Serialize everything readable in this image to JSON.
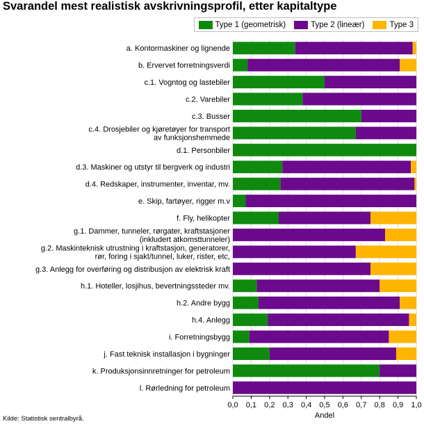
{
  "title": "Svarandel mest realistisk avskrivningsprofil, etter kapitaltype",
  "source": "Kilde: Statistisk sentralbyrå.",
  "colors": {
    "type1": "#0f8a0f",
    "type2": "#6b0a8c",
    "type3": "#ffb400",
    "grid": "#d9d9d9"
  },
  "chart_data": {
    "type": "bar",
    "orientation": "horizontal",
    "stacked": true,
    "title": "Svarandel mest realistisk avskrivningsprofil, etter kapitaltype",
    "xlabel": "Andel",
    "ylabel": "",
    "xlim": [
      0,
      1
    ],
    "xticks": [
      "0,0",
      "0,1",
      "0,2",
      "0,3",
      "0,4",
      "0,5",
      "0,6",
      "0,7",
      "0,8",
      "0,9",
      "1,0"
    ],
    "legend": [
      "Type 1 (geometrisk)",
      "Type 2 (lineær)",
      "Type 3"
    ],
    "legend_position": "top-right",
    "categories": [
      [
        "a. Kontormaskiner og lignende"
      ],
      [
        "b. Ervervet forretningsverdi"
      ],
      [
        "c.1. Vogntog og lastebiler"
      ],
      [
        "c.2. Varebiler"
      ],
      [
        "c.3. Busser"
      ],
      [
        "c.4. Drosjebiler og kjøretøyer for transport",
        "av funksjonshemmede"
      ],
      [
        "d.1. Personbiler"
      ],
      [
        "d.3. Maskiner og utstyr til bergverk og industri"
      ],
      [
        "d.4. Redskaper, instrumenter, inventar, mv."
      ],
      [
        "e. Skip, fartøyer, rigger m.v"
      ],
      [
        "f. Fly, helikopter"
      ],
      [
        "g.1. Dammer, tunneler, rørgater, kraftstasjoner",
        "(inkludert atkomsttunneler)"
      ],
      [
        "g.2. Maskinteknisk utrustning i kraftstasjon, generatorer,",
        "rør, foring i sjakt/tunnel, luker, rister, etc,"
      ],
      [
        "g.3. Anlegg for overføring og distribusjon av elektrisk kraft"
      ],
      [
        "h.1. Hoteller, losjihus, bevertningssteder mv."
      ],
      [
        "h.2. Andre bygg"
      ],
      [
        "h.4. Anlegg"
      ],
      [
        "i. Forretningsbygg"
      ],
      [
        "j. Fast teknisk installasjon i bygninger"
      ],
      [
        "k. Produksjonsinnretninger for petroleum"
      ],
      [
        "l. Rørledning for petroleum"
      ]
    ],
    "series": [
      {
        "name": "Type 1 (geometrisk)",
        "values": [
          0.34,
          0.08,
          0.5,
          0.38,
          0.7,
          0.67,
          1.0,
          0.27,
          0.26,
          0.07,
          0.25,
          0.0,
          0.0,
          0.0,
          0.13,
          0.14,
          0.19,
          0.09,
          0.2,
          0.8,
          0.0
        ]
      },
      {
        "name": "Type 2 (lineær)",
        "values": [
          0.64,
          0.83,
          0.5,
          0.62,
          0.3,
          0.33,
          0.0,
          0.7,
          0.73,
          0.93,
          0.5,
          0.83,
          0.67,
          0.75,
          0.67,
          0.77,
          0.77,
          0.76,
          0.69,
          0.2,
          1.0
        ]
      },
      {
        "name": "Type 3",
        "values": [
          0.02,
          0.09,
          0.0,
          0.0,
          0.0,
          0.0,
          0.0,
          0.03,
          0.01,
          0.0,
          0.25,
          0.17,
          0.33,
          0.25,
          0.2,
          0.09,
          0.04,
          0.15,
          0.11,
          0.0,
          0.0
        ]
      }
    ]
  }
}
